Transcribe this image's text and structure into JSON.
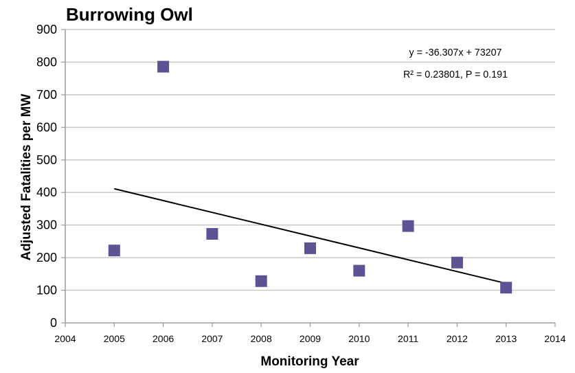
{
  "chart_data": {
    "type": "scatter",
    "title": "Burrowing Owl",
    "xlabel": "Monitoring Year",
    "ylabel": "Adjusted Fatalities per MW",
    "xlim": [
      2004,
      2014
    ],
    "ylim": [
      0,
      900
    ],
    "x_ticks": [
      "2004",
      "2005",
      "2006",
      "2007",
      "2008",
      "2009",
      "2010",
      "2011",
      "2012",
      "2013",
      "2014"
    ],
    "y_ticks": [
      "0",
      "100",
      "200",
      "300",
      "400",
      "500",
      "600",
      "700",
      "800",
      "900"
    ],
    "grid": "horizontal",
    "series": [
      {
        "marker": "square",
        "color": "#5f5294",
        "points": [
          {
            "x": 2005,
            "y": 222
          },
          {
            "x": 2006,
            "y": 786
          },
          {
            "x": 2007,
            "y": 273
          },
          {
            "x": 2008,
            "y": 128
          },
          {
            "x": 2009,
            "y": 229
          },
          {
            "x": 2010,
            "y": 160
          },
          {
            "x": 2011,
            "y": 297
          },
          {
            "x": 2012,
            "y": 185
          },
          {
            "x": 2013,
            "y": 108
          }
        ]
      }
    ],
    "trendline": {
      "slope": -36.307,
      "intercept": 73207,
      "x_range": [
        2005,
        2013
      ],
      "color": "#000000"
    },
    "annotations": {
      "equation": "y = -36.307x + 73207",
      "stats": "R² = 0.23801, P = 0.191"
    }
  }
}
